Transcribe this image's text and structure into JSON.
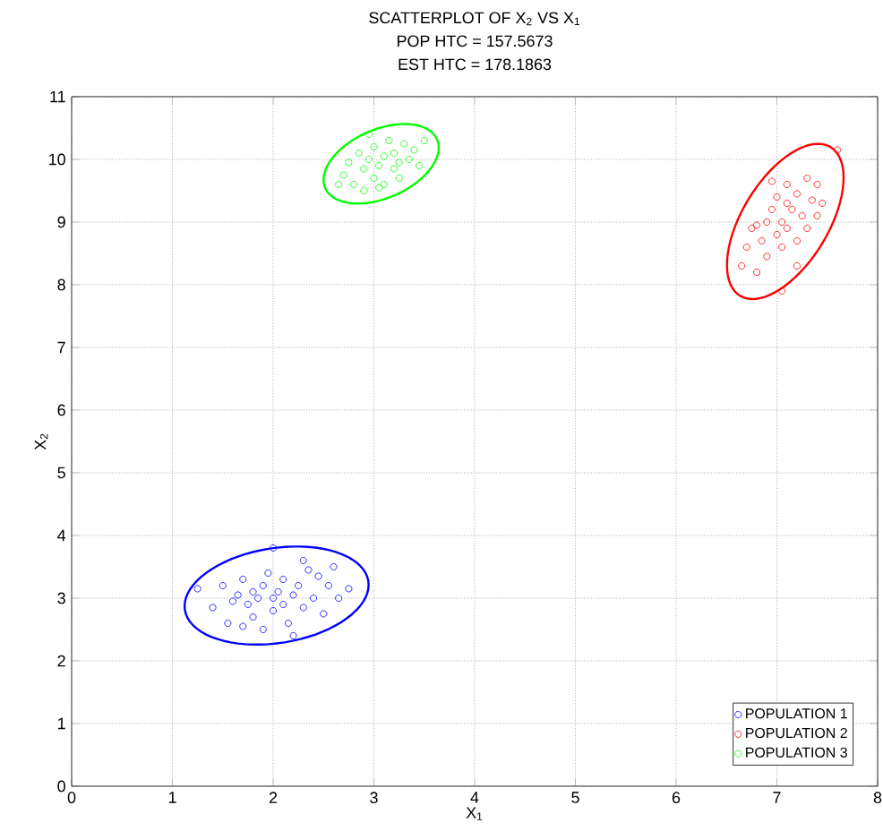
{
  "chart_data": {
    "type": "scatter",
    "title": "SCATTERPLOT OF X$_{2}$ VS X$_{1}$",
    "subtitle": "POP HTC = 157.5673",
    "annotations": [
      "EST HTC = 178.1863"
    ],
    "xlabel": "X$_{1}$",
    "ylabel": "X$_{2}$",
    "xlim": [
      0,
      8
    ],
    "ylim": [
      0,
      11
    ],
    "xticks": [
      0,
      1,
      2,
      3,
      4,
      5,
      6,
      7,
      8
    ],
    "yticks": [
      0,
      1,
      2,
      3,
      4,
      5,
      6,
      7,
      8,
      9,
      10,
      11
    ],
    "grid": true,
    "legend": "bottom right",
    "marker": "circle",
    "series": [
      {
        "name": "POPULATION 1",
        "color": "#0000ff",
        "x": [
          1.25,
          1.4,
          1.5,
          1.55,
          1.6,
          1.65,
          1.7,
          1.75,
          1.8,
          1.8,
          1.85,
          1.9,
          1.9,
          1.95,
          2.0,
          2.0,
          2.0,
          2.05,
          2.1,
          2.1,
          2.15,
          2.2,
          2.2,
          2.25,
          2.3,
          2.35,
          2.4,
          2.45,
          2.5,
          2.55,
          2.6,
          2.65,
          2.75,
          1.7,
          2.3
        ],
        "values": [
          3.15,
          2.85,
          3.2,
          2.6,
          2.95,
          3.05,
          3.3,
          2.9,
          3.1,
          2.7,
          3.0,
          3.2,
          2.5,
          3.4,
          3.0,
          2.8,
          3.8,
          3.1,
          2.9,
          3.3,
          2.6,
          3.05,
          2.4,
          3.2,
          2.85,
          3.45,
          3.0,
          3.35,
          2.75,
          3.2,
          3.5,
          3.0,
          3.15,
          2.55,
          3.6
        ]
      },
      {
        "name": "POPULATION 2",
        "color": "#ff0000",
        "x": [
          6.65,
          6.7,
          6.75,
          6.8,
          6.85,
          6.9,
          6.9,
          6.95,
          7.0,
          7.0,
          7.05,
          7.05,
          7.1,
          7.1,
          7.15,
          7.2,
          7.2,
          7.25,
          7.3,
          7.3,
          7.35,
          7.4,
          7.4,
          7.2,
          7.05,
          7.6,
          6.95,
          7.45,
          6.8,
          7.1
        ],
        "values": [
          8.3,
          8.6,
          8.9,
          8.2,
          8.7,
          9.0,
          8.45,
          9.2,
          8.8,
          9.4,
          8.6,
          9.0,
          9.6,
          8.9,
          9.2,
          8.7,
          9.45,
          9.1,
          9.7,
          8.9,
          9.35,
          9.6,
          9.1,
          8.3,
          7.9,
          10.15,
          9.65,
          9.3,
          8.95,
          9.3
        ]
      },
      {
        "name": "POPULATION 3",
        "color": "#00ff00",
        "x": [
          2.7,
          2.75,
          2.8,
          2.85,
          2.9,
          2.9,
          2.95,
          3.0,
          3.0,
          3.05,
          3.1,
          3.1,
          3.15,
          3.2,
          3.2,
          3.25,
          3.3,
          3.35,
          3.4,
          3.45,
          2.65,
          3.5,
          2.95,
          3.05,
          3.25
        ],
        "values": [
          9.75,
          9.95,
          9.6,
          10.1,
          9.85,
          9.5,
          10.0,
          9.7,
          10.2,
          9.9,
          10.05,
          9.6,
          10.3,
          9.85,
          10.1,
          9.95,
          10.25,
          10.0,
          10.15,
          9.9,
          9.6,
          10.3,
          10.4,
          9.55,
          9.7
        ]
      }
    ]
  }
}
